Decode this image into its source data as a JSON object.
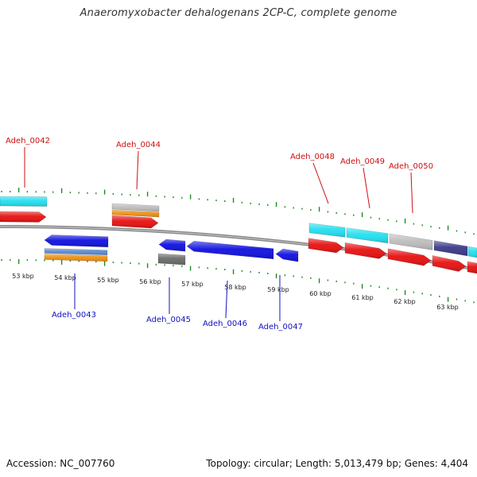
{
  "title": "Anaeromyxobacter dehalogenans 2CP-C, complete genome",
  "footer": {
    "accession": "Accession: NC_007760",
    "topology": "Topology: circular; Length: 5,013,479 bp; Genes: 4,404"
  },
  "colors": {
    "tick": "#1f8a1f",
    "backbone": "#8a8a8a",
    "top_label": "#d01010",
    "bottom_label": "#1010c0",
    "cds_red": "#e81010",
    "cds_blue": "#1010e0",
    "cyan": "#22e0f0",
    "orange": "#f09010",
    "gray": "#bdbdbd",
    "dark_gray": "#6a6a6a",
    "steel_blue": "#5a8ad0",
    "purple": "#3a3a8a"
  },
  "scale_labels": [
    "53 kbp",
    "54 kbp",
    "55 kbp",
    "56 kbp",
    "57 kbp",
    "58 kbp",
    "59 kbp",
    "60 kbp",
    "61 kbp",
    "62 kbp",
    "63 kbp"
  ],
  "gene_labels": {
    "top": [
      "Adeh_0042",
      "Adeh_0044",
      "Adeh_0048",
      "Adeh_0049",
      "Adeh_0050"
    ],
    "bottom": [
      "Adeh_0043",
      "Adeh_0045",
      "Adeh_0046",
      "Adeh_0047"
    ]
  }
}
